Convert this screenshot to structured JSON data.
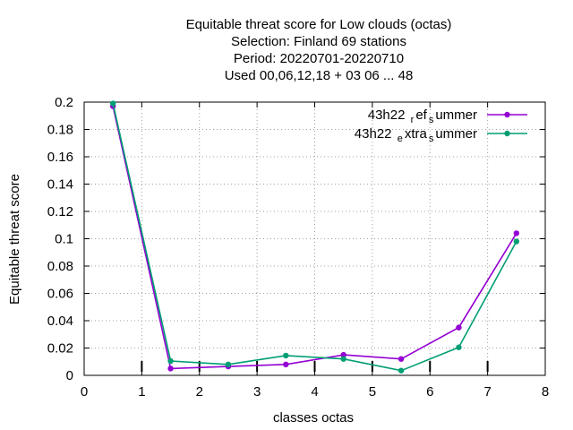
{
  "chart_data": {
    "type": "line",
    "title_lines": [
      "Equitable threat score  for Low clouds (octas)",
      "Selection: Finland     69 stations",
      "Period: 20220701-20220710",
      "Used  00,06,12,18  + 03 06 ... 48"
    ],
    "xlabel": "classes octas",
    "ylabel": "Equitable threat score",
    "xlim": [
      0,
      8
    ],
    "ylim": [
      0,
      0.2
    ],
    "x_ticks": [
      0,
      1,
      2,
      3,
      4,
      5,
      6,
      7,
      8
    ],
    "y_ticks": [
      0,
      0.02,
      0.04,
      0.06,
      0.08,
      0.1,
      0.12,
      0.14,
      0.16,
      0.18,
      0.2
    ],
    "y_tick_labels": [
      "0",
      "0.02",
      "0.04",
      "0.06",
      "0.08",
      "0.1",
      "0.12",
      "0.14",
      "0.16",
      "0.18",
      "0.2"
    ],
    "grid": true,
    "legend_position": "top-right",
    "x": [
      0.5,
      1.5,
      2.5,
      3.5,
      4.5,
      5.5,
      6.5,
      7.5
    ],
    "series": [
      {
        "legend_parts": {
          "main": "43h22",
          "sub1": "r",
          "mid": "ef",
          "sub2": "s",
          "end": "ummer"
        },
        "color": "#9400d3",
        "values": [
          0.197,
          0.005,
          0.0065,
          0.008,
          0.015,
          0.012,
          0.035,
          0.104
        ]
      },
      {
        "legend_parts": {
          "main": "43h22",
          "sub1": "e",
          "mid": "xtra",
          "sub2": "s",
          "end": "ummer"
        },
        "color": "#009e73",
        "values": [
          0.199,
          0.0105,
          0.008,
          0.0145,
          0.012,
          0.0035,
          0.0205,
          0.098
        ]
      }
    ],
    "class_marks": [
      1,
      2,
      3,
      4,
      5,
      6,
      7
    ]
  }
}
